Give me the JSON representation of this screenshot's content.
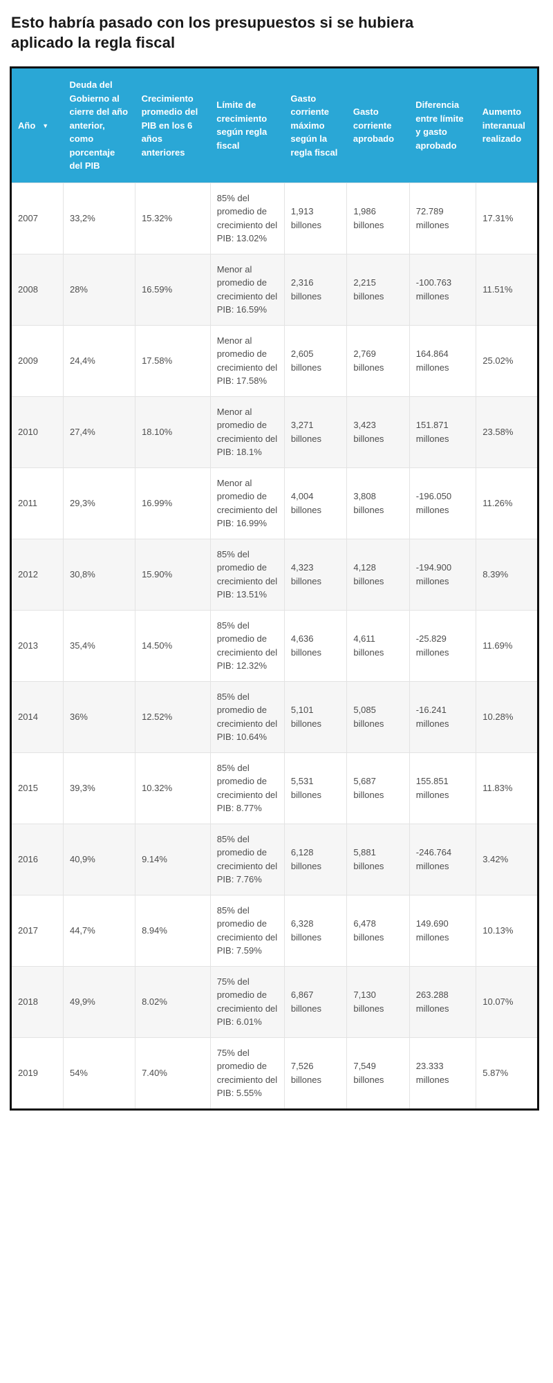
{
  "page": {
    "title": "Esto habría pasado con los presupuestos si se hubiera aplicado la regla fiscal"
  },
  "table_ui": {
    "sort_icon": "▼",
    "sorted_column": "Año",
    "sort_direction": "descending"
  },
  "colors": {
    "header_bg": "#2aa7d6",
    "row_alt_bg": "#f6f6f6",
    "outer_border": "#101010",
    "grid_line": "#e3e3e3",
    "body_text": "#4d4d4d",
    "title_text": "#181818"
  },
  "chart_data": {
    "type": "table",
    "title": "Esto habría pasado con los presupuestos si se hubiera aplicado la regla fiscal",
    "columns": [
      "Año",
      "Deuda del Gobierno al cierre del año anterior, como porcentaje del PIB",
      "Crecimiento promedio del PIB en los 6 años anteriores",
      "Límite de crecimiento según regla fiscal",
      "Gasto corriente máximo según la regla fiscal",
      "Gasto corriente aprobado",
      "Diferencia entre límite y gasto aprobado",
      "Aumento interanual realizado"
    ],
    "rows": [
      [
        "2007",
        "33,2%",
        "15.32%",
        "85% del promedio de crecimiento del PIB: 13.02%",
        "1,913 billones",
        "1,986 billones",
        "72.789 millones",
        "17.31%"
      ],
      [
        "2008",
        "28%",
        "16.59%",
        "Menor al promedio de crecimiento del PIB: 16.59%",
        "2,316 billones",
        "2,215 billones",
        "-100.763 millones",
        "11.51%"
      ],
      [
        "2009",
        "24,4%",
        "17.58%",
        "Menor al promedio de crecimiento del PIB: 17.58%",
        "2,605 billones",
        "2,769 billones",
        "164.864 millones",
        "25.02%"
      ],
      [
        "2010",
        "27,4%",
        "18.10%",
        "Menor al promedio de crecimiento del PIB: 18.1%",
        "3,271 billones",
        "3,423 billones",
        "151.871 millones",
        "23.58%"
      ],
      [
        "2011",
        "29,3%",
        "16.99%",
        "Menor al promedio de crecimiento del PIB: 16.99%",
        "4,004 billones",
        "3,808 billones",
        "-196.050 millones",
        "11.26%"
      ],
      [
        "2012",
        "30,8%",
        "15.90%",
        "85% del promedio de crecimiento del PIB: 13.51%",
        "4,323 billones",
        "4,128 billones",
        "-194.900 millones",
        "8.39%"
      ],
      [
        "2013",
        "35,4%",
        "14.50%",
        "85% del promedio de crecimiento del PIB: 12.32%",
        "4,636 billones",
        "4,611 billones",
        "-25.829 millones",
        "11.69%"
      ],
      [
        "2014",
        "36%",
        "12.52%",
        "85% del promedio de crecimiento del PIB: 10.64%",
        "5,101 billones",
        "5,085 billones",
        "-16.241 millones",
        "10.28%"
      ],
      [
        "2015",
        "39,3%",
        "10.32%",
        "85% del promedio de crecimiento del PIB: 8.77%",
        "5,531 billones",
        "5,687 billones",
        "155.851 millones",
        "11.83%"
      ],
      [
        "2016",
        "40,9%",
        "9.14%",
        "85% del promedio de crecimiento del PIB: 7.76%",
        "6,128 billones",
        "5,881 billones",
        "-246.764 millones",
        "3.42%"
      ],
      [
        "2017",
        "44,7%",
        "8.94%",
        "85% del promedio de crecimiento del PIB: 7.59%",
        "6,328 billones",
        "6,478 billones",
        "149.690 millones",
        "10.13%"
      ],
      [
        "2018",
        "49,9%",
        "8.02%",
        "75% del promedio de crecimiento del PIB: 6.01%",
        "6,867 billones",
        "7,130 billones",
        "263.288 millones",
        "10.07%"
      ],
      [
        "2019",
        "54%",
        "7.40%",
        "75% del promedio de crecimiento del PIB: 5.55%",
        "7,526 billones",
        "7,549 billones",
        "23.333 millones",
        "5.87%"
      ]
    ]
  }
}
